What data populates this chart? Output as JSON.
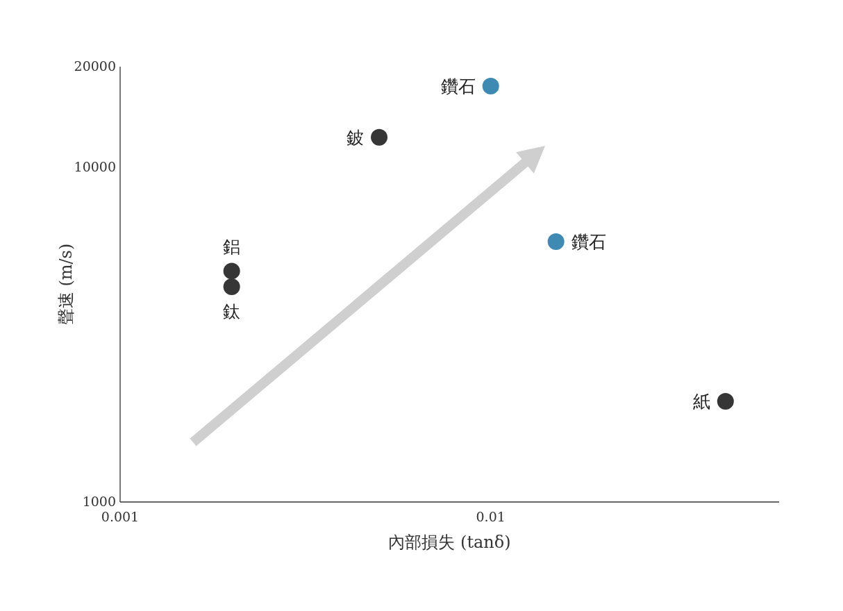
{
  "chart_data": {
    "type": "scatter",
    "xlabel": "內部損失 (tanδ)",
    "ylabel": "聲速 (m/s)",
    "log": "xy",
    "marker": "circle",
    "grid": false,
    "xlim": [
      0.001,
      0.06
    ],
    "xticks": [
      0.001,
      0.01
    ],
    "ylim": [
      1000,
      20000
    ],
    "yticks": [
      1000,
      10000,
      20000
    ],
    "x": [
      0.01,
      0.005,
      0.015,
      0.002,
      0.002,
      0.043
    ],
    "values": [
      17500,
      12300,
      6000,
      4900,
      4400,
      2000
    ],
    "colors": [
      "#3f8ab2",
      "#363636",
      "#3f8ab2",
      "#363636",
      "#363636",
      "#363636"
    ],
    "annotations": [
      {
        "text": "鑽石",
        "x": 0.01,
        "y": 17500
      },
      {
        "text": "鈹",
        "x": 0.005,
        "y": 12300
      },
      {
        "text": "鑽石",
        "x": 0.015,
        "y": 6000
      },
      {
        "text": "鋁",
        "x": 0.002,
        "y": 4900
      },
      {
        "text": "鈦",
        "x": 0.002,
        "y": 4400
      },
      {
        "text": "紙",
        "x": 0.043,
        "y": 2000
      }
    ]
  }
}
